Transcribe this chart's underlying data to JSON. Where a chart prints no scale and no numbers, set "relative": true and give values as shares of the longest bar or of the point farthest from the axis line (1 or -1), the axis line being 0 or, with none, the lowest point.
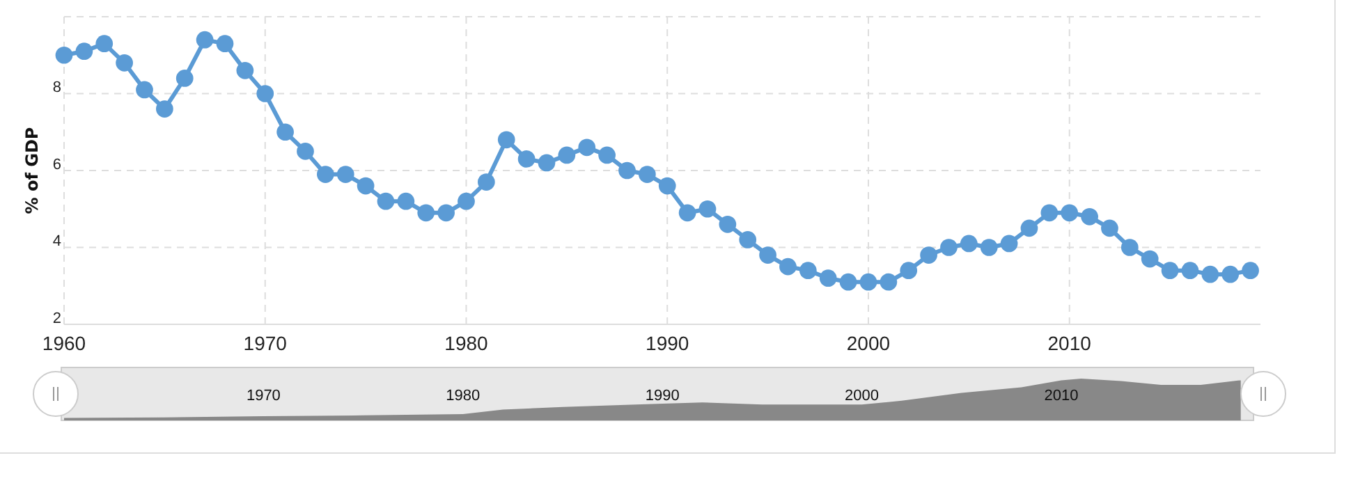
{
  "chart_data": [
    {
      "type": "line",
      "ylabel": "% of GDP",
      "x": [
        1960,
        1961,
        1962,
        1963,
        1964,
        1965,
        1966,
        1967,
        1968,
        1969,
        1970,
        1971,
        1972,
        1973,
        1974,
        1975,
        1976,
        1977,
        1978,
        1979,
        1980,
        1981,
        1982,
        1983,
        1984,
        1985,
        1986,
        1987,
        1988,
        1989,
        1990,
        1991,
        1992,
        1993,
        1994,
        1995,
        1996,
        1997,
        1998,
        1999,
        2000,
        2001,
        2002,
        2003,
        2004,
        2005,
        2006,
        2007,
        2008,
        2009,
        2010,
        2011,
        2012,
        2013,
        2014,
        2015,
        2016,
        2017,
        2018,
        2019
      ],
      "series": [
        {
          "color": "#5b9bd5",
          "values": [
            9.0,
            9.1,
            9.3,
            8.8,
            8.1,
            7.6,
            8.4,
            9.4,
            9.3,
            8.6,
            8.0,
            7.0,
            6.5,
            5.9,
            5.9,
            5.6,
            5.2,
            5.2,
            4.9,
            4.9,
            5.2,
            5.7,
            6.8,
            6.3,
            6.2,
            6.4,
            6.6,
            6.4,
            6.0,
            5.9,
            5.6,
            4.9,
            5.0,
            4.6,
            4.2,
            3.8,
            3.5,
            3.4,
            3.2,
            3.1,
            3.1,
            3.1,
            3.4,
            3.8,
            4.0,
            4.1,
            4.0,
            4.1,
            4.5,
            4.9,
            4.9,
            4.8,
            4.5,
            4.0,
            3.7,
            3.4,
            3.4,
            3.3,
            3.3,
            3.4
          ]
        }
      ],
      "xlim": [
        1960,
        2019.5
      ],
      "xticks": [
        1960,
        1970,
        1980,
        1990,
        2000,
        2010
      ],
      "ylim": [
        2,
        10
      ],
      "yticks": [
        2,
        4,
        6,
        8,
        {
          "value": 10,
          "label": null
        }
      ],
      "grid": true,
      "marker": "circle",
      "line_style": "solid"
    },
    {
      "type": "area",
      "relative": true,
      "x": [
        1960,
        1965,
        1970,
        1975,
        1980,
        1982,
        1985,
        1990,
        1992,
        1995,
        2000,
        2002,
        2005,
        2008,
        2010,
        2011,
        2013,
        2015,
        2017,
        2019
      ],
      "series": [
        {
          "color": "#888888",
          "values": [
            0.06,
            0.07,
            0.1,
            0.12,
            0.15,
            0.26,
            0.32,
            0.4,
            0.43,
            0.38,
            0.38,
            0.47,
            0.66,
            0.79,
            0.96,
            1,
            0.94,
            0.85,
            0.85,
            0.96
          ]
        }
      ],
      "xlim": [
        1960,
        2019.5
      ],
      "xticks": [
        1970,
        1980,
        1990,
        2000,
        2010
      ],
      "grid": false
    }
  ]
}
